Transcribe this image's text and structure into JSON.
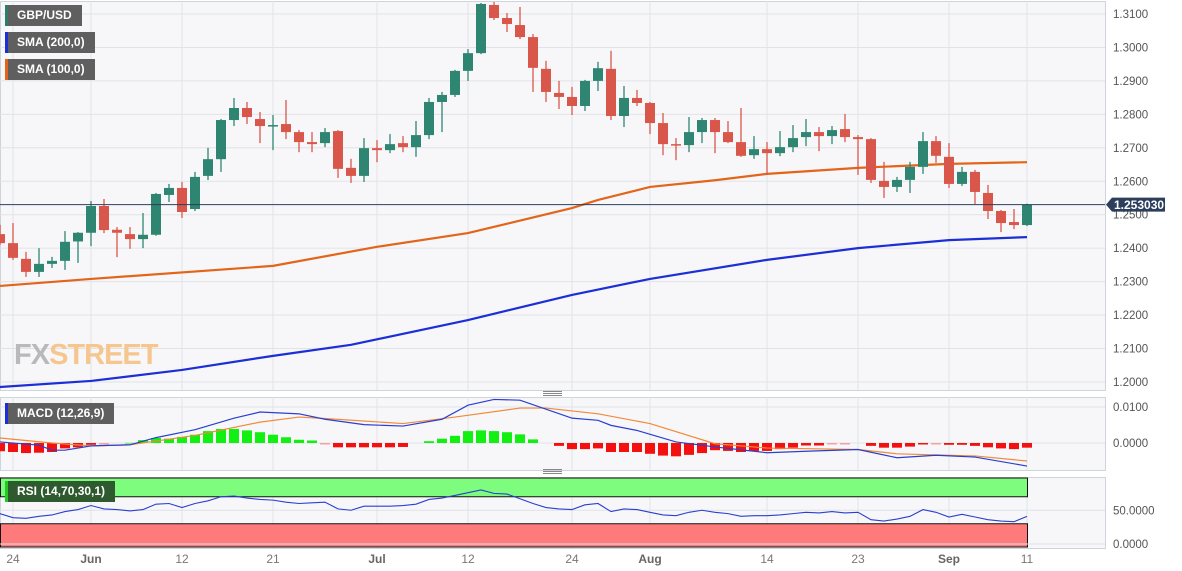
{
  "legends": {
    "pair": {
      "label": "GBP/USD",
      "color": "#2e7d6b"
    },
    "sma200": {
      "label": "SMA (200,0)",
      "color": "#1c2fd6"
    },
    "sma100": {
      "label": "SMA (100,0)",
      "color": "#e2651a"
    },
    "macd": {
      "label": "MACD (12,26,9)",
      "color": "#1c2fd6"
    },
    "rsi": {
      "label": "RSI (14,70,30,1)",
      "color": "#22cc22"
    }
  },
  "logo": {
    "fx": "FX",
    "street": "STREET"
  },
  "colors": {
    "up": "#2e8672",
    "down": "#d9574a",
    "sma200": "#1c2fd6",
    "sma100": "#e2651a",
    "hist_up": "#12f012",
    "hist_down": "#f51010",
    "macd_line": "#2a3fd0",
    "signal_line": "#f08a3c",
    "rsi_line": "#2a3fd0",
    "rsi_overbought": "#7dfc7d",
    "rsi_oversold": "#ff7b7b",
    "price_tag": "#2b3f5c"
  },
  "chart_data": [
    {
      "type": "candlestick",
      "series_name": "GBP/USD",
      "ylim": [
        1.195,
        1.314
      ],
      "y_ticks": [
        "1.3100",
        "1.3000",
        "1.2900",
        "1.2800",
        "1.2700",
        "1.2600",
        "1.2500",
        "1.2400",
        "1.2300",
        "1.2200",
        "1.2100",
        "1.2000"
      ],
      "last_price": "1.253030",
      "grid": true,
      "dates": [
        "May 23",
        "May 24",
        "May 25",
        "May 26",
        "May 29",
        "May 30",
        "May 31",
        "Jun 1",
        "Jun 2",
        "Jun 5",
        "Jun 6",
        "Jun 7",
        "Jun 8",
        "Jun 9",
        "Jun 12",
        "Jun 13",
        "Jun 14",
        "Jun 15",
        "Jun 16",
        "Jun 19",
        "Jun 20",
        "Jun 21",
        "Jun 22",
        "Jun 23",
        "Jun 26",
        "Jun 27",
        "Jun 28",
        "Jun 29",
        "Jun 30",
        "Jul 3",
        "Jul 4",
        "Jul 5",
        "Jul 6",
        "Jul 7",
        "Jul 10",
        "Jul 11",
        "Jul 12",
        "Jul 13",
        "Jul 14",
        "Jul 17",
        "Jul 18",
        "Jul 19",
        "Jul 20",
        "Jul 21",
        "Jul 24",
        "Jul 25",
        "Jul 26",
        "Jul 27",
        "Jul 28",
        "Jul 31",
        "Aug 1",
        "Aug 2",
        "Aug 3",
        "Aug 4",
        "Aug 7",
        "Aug 8",
        "Aug 9",
        "Aug 10",
        "Aug 11",
        "Aug 14",
        "Aug 15",
        "Aug 16",
        "Aug 17",
        "Aug 18",
        "Aug 21",
        "Aug 22",
        "Aug 23",
        "Aug 24",
        "Aug 25",
        "Aug 28",
        "Aug 29",
        "Aug 30",
        "Aug 31",
        "Sep 1",
        "Sep 4",
        "Sep 5",
        "Sep 6",
        "Sep 7",
        "Sep 8",
        "Sep 11"
      ],
      "open": [
        1.2442,
        1.2415,
        1.2368,
        1.2329,
        1.2353,
        1.2362,
        1.242,
        1.2446,
        1.2526,
        1.2455,
        1.2442,
        1.2427,
        1.244,
        1.2559,
        1.258,
        1.2517,
        1.2616,
        1.2666,
        1.2783,
        1.2819,
        1.2786,
        1.2765,
        1.2771,
        1.2747,
        1.2717,
        1.2714,
        1.275,
        1.264,
        1.2616,
        1.2699,
        1.2693,
        1.2714,
        1.2702,
        1.2738,
        1.2837,
        1.2858,
        1.293,
        1.2983,
        1.3127,
        1.3088,
        1.3067,
        1.3031,
        1.2936,
        1.2864,
        1.2852,
        1.2825,
        1.29,
        1.2936,
        1.2795,
        1.2849,
        1.2834,
        1.2774,
        1.2711,
        1.2708,
        1.2747,
        1.2783,
        1.2747,
        1.2717,
        1.2678,
        1.2696,
        1.2684,
        1.2702,
        1.2732,
        1.2747,
        1.2735,
        1.2756,
        1.2732,
        1.2726,
        1.2601,
        1.2583,
        1.2604,
        1.2643,
        1.272,
        1.2673,
        1.2592,
        1.2628,
        1.2565,
        1.2511,
        1.2478,
        1.2469
      ],
      "high": [
        1.247,
        1.2475,
        1.2389,
        1.24,
        1.2374,
        1.2451,
        1.2448,
        1.2541,
        1.2547,
        1.2463,
        1.2463,
        1.2505,
        1.2565,
        1.2592,
        1.2598,
        1.2628,
        1.27,
        1.2786,
        1.2849,
        1.2837,
        1.2807,
        1.2798,
        1.2843,
        1.2753,
        1.2747,
        1.2759,
        1.2753,
        1.2667,
        1.2729,
        1.2723,
        1.2741,
        1.2735,
        1.278,
        1.2849,
        1.2867,
        1.2933,
        1.2995,
        1.3133,
        1.3136,
        1.3103,
        1.3121,
        1.304,
        1.296,
        1.29,
        1.2882,
        1.2903,
        1.2957,
        1.299,
        1.2885,
        1.2873,
        1.2837,
        1.2804,
        1.2729,
        1.2792,
        1.2789,
        1.2789,
        1.278,
        1.2819,
        1.2735,
        1.2717,
        1.275,
        1.2768,
        1.2786,
        1.2762,
        1.2765,
        1.2801,
        1.2738,
        1.2729,
        1.2658,
        1.2613,
        1.2658,
        1.2747,
        1.2735,
        1.2714,
        1.2643,
        1.2634,
        1.2589,
        1.2514,
        1.2517,
        1.2533
      ],
      "low": [
        1.241,
        1.2365,
        1.2314,
        1.2314,
        1.2341,
        1.2335,
        1.2356,
        1.2406,
        1.2445,
        1.2373,
        1.2398,
        1.24,
        1.2437,
        1.2538,
        1.249,
        1.2511,
        1.2604,
        1.2628,
        1.2765,
        1.2771,
        1.2714,
        1.2693,
        1.2726,
        1.2687,
        1.2687,
        1.2702,
        1.261,
        1.2595,
        1.2598,
        1.2657,
        1.2684,
        1.2687,
        1.2673,
        1.2726,
        1.2747,
        1.2852,
        1.29,
        1.298,
        1.3082,
        1.3046,
        1.3025,
        1.2867,
        1.2837,
        1.2816,
        1.2798,
        1.281,
        1.287,
        1.2783,
        1.2762,
        1.2825,
        1.2741,
        1.2678,
        1.2663,
        1.2687,
        1.2714,
        1.2684,
        1.2714,
        1.2673,
        1.2667,
        1.2619,
        1.2675,
        1.2687,
        1.2705,
        1.269,
        1.2711,
        1.2717,
        1.2619,
        1.2595,
        1.255,
        1.2568,
        1.2565,
        1.2622,
        1.2655,
        1.258,
        1.2586,
        1.2532,
        1.2487,
        1.2448,
        1.2457,
        1.2466
      ],
      "close": [
        1.2415,
        1.2371,
        1.2329,
        1.2353,
        1.2362,
        1.2419,
        1.2446,
        1.2526,
        1.2454,
        1.2446,
        1.2427,
        1.244,
        1.2562,
        1.258,
        1.2508,
        1.2613,
        1.2666,
        1.2783,
        1.2819,
        1.2792,
        1.2765,
        1.2768,
        1.2747,
        1.2717,
        1.2711,
        1.2747,
        1.2637,
        1.2616,
        1.2699,
        1.2693,
        1.2711,
        1.2702,
        1.2738,
        1.2837,
        1.2858,
        1.293,
        1.2983,
        1.313,
        1.3088,
        1.307,
        1.3031,
        1.2939,
        1.2867,
        1.2852,
        1.2825,
        1.29,
        1.2938,
        1.2795,
        1.2849,
        1.2834,
        1.2774,
        1.2711,
        1.2708,
        1.2747,
        1.2783,
        1.2747,
        1.2717,
        1.2676,
        1.2696,
        1.2684,
        1.2702,
        1.2729,
        1.2747,
        1.2735,
        1.2753,
        1.2732,
        1.2726,
        1.2604,
        1.2583,
        1.2604,
        1.2643,
        1.272,
        1.2676,
        1.2592,
        1.2628,
        1.2568,
        1.2511,
        1.2475,
        1.2469,
        1.253
      ],
      "sma200": [
        [
          "May 23",
          1.1985
        ],
        [
          "Jun 1",
          1.2003
        ],
        [
          "Jun 12",
          1.2036
        ],
        [
          "Jun 21",
          1.2078
        ],
        [
          "Jun 29",
          1.2111
        ],
        [
          "Jul 12",
          1.2185
        ],
        [
          "Jul 24",
          1.226
        ],
        [
          "Aug 1",
          1.2308
        ],
        [
          "Aug 14",
          1.2365
        ],
        [
          "Aug 23",
          1.24
        ],
        [
          "Sep 1",
          1.2424
        ],
        [
          "Sep 11",
          1.2433
        ]
      ],
      "sma100": [
        [
          "May 23",
          1.2287
        ],
        [
          "Jun 1",
          1.2308
        ],
        [
          "Jun 21",
          1.2347
        ],
        [
          "Jul 3",
          1.2404
        ],
        [
          "Jul 12",
          1.2445
        ],
        [
          "Jul 24",
          1.252
        ],
        [
          "Jul 26",
          1.2544
        ],
        [
          "Aug 1",
          1.2583
        ],
        [
          "Aug 8",
          1.2603
        ],
        [
          "Aug 14",
          1.2622
        ],
        [
          "Aug 23",
          1.264
        ],
        [
          "Sep 1",
          1.2652
        ],
        [
          "Sep 11",
          1.2657
        ]
      ],
      "x_labels": [
        [
          "24",
          "May 24",
          false
        ],
        [
          "Jun",
          "Jun 1",
          true
        ],
        [
          "12",
          "Jun 12",
          false
        ],
        [
          "21",
          "Jun 21",
          false
        ],
        [
          "Jul",
          "Jul 3",
          true
        ],
        [
          "12",
          "Jul 12",
          false
        ],
        [
          "24",
          "Jul 24",
          false
        ],
        [
          "Aug",
          "Aug 1",
          true
        ],
        [
          "14",
          "Aug 14",
          false
        ],
        [
          "23",
          "Aug 23",
          false
        ],
        [
          "Sep",
          "Sep 1",
          true
        ],
        [
          "11",
          "Sep 11",
          false
        ]
      ]
    },
    {
      "type": "bar+line",
      "name": "MACD (12,26,9)",
      "ylim": [
        -0.0075,
        0.013
      ],
      "y_ticks": [
        "0.0100",
        "0.0000"
      ],
      "histogram": [
        -0.0023,
        -0.0025,
        -0.0028,
        -0.0027,
        -0.0025,
        -0.0015,
        -0.0012,
        -0.0005,
        -0.0002,
        0,
        0.0001,
        0.0008,
        0.0014,
        0.0012,
        0.0017,
        0.0023,
        0.0033,
        0.0039,
        0.0039,
        0.0035,
        0.003,
        0.0023,
        0.0016,
        0.0009,
        0.0007,
        -0.0003,
        -0.0012,
        -0.0012,
        -0.0012,
        -0.0012,
        -0.0012,
        -0.0011,
        0,
        0.0005,
        0.0012,
        0.002,
        0.0033,
        0.0035,
        0.0033,
        0.003,
        0.0024,
        0.001,
        0,
        -0.0008,
        -0.0017,
        -0.0017,
        -0.0015,
        -0.0025,
        -0.0025,
        -0.0025,
        -0.003,
        -0.0035,
        -0.0037,
        -0.0033,
        -0.0028,
        -0.002,
        -0.0022,
        -0.0025,
        -0.0023,
        -0.0022,
        -0.0017,
        -0.0013,
        -0.0007,
        -0.0007,
        -0.0003,
        -0.0001,
        0,
        -0.0008,
        -0.0013,
        -0.0013,
        -0.001,
        -0.0004,
        -0.0002,
        -0.0005,
        -0.0005,
        -0.0008,
        -0.0012,
        -0.0015,
        -0.0017,
        -0.0013
      ],
      "macd": [
        [
          "May 23",
          0.0003
        ],
        [
          "May 26",
          -0.0006
        ],
        [
          "May 29",
          -0.002
        ],
        [
          "May 30",
          -0.002
        ],
        [
          "Jun 1",
          -0.0008
        ],
        [
          "Jun 6",
          -0.0005
        ],
        [
          "Jun 8",
          0.0015
        ],
        [
          "Jun 13",
          0.0037
        ],
        [
          "Jun 16",
          0.0069
        ],
        [
          "Jun 20",
          0.0086
        ],
        [
          "Jun 23",
          0.0081
        ],
        [
          "Jun 27",
          0.0066
        ],
        [
          "Jun 30",
          0.0051
        ],
        [
          "Jul 5",
          0.0047
        ],
        [
          "Jul 10",
          0.0066
        ],
        [
          "Jul 12",
          0.0105
        ],
        [
          "Jul 14",
          0.0121
        ],
        [
          "Jul 18",
          0.0119
        ],
        [
          "Jul 24",
          0.0069
        ],
        [
          "Jul 26",
          0.0063
        ],
        [
          "Jul 27",
          0.0049
        ],
        [
          "Jul 31",
          0.0035
        ],
        [
          "Aug 3",
          0.0003
        ],
        [
          "Aug 8",
          -0.0011
        ],
        [
          "Aug 14",
          -0.0027
        ],
        [
          "Aug 17",
          -0.0023
        ],
        [
          "Aug 23",
          -0.0018
        ],
        [
          "Aug 28",
          -0.0041
        ],
        [
          "Aug 31",
          -0.0034
        ],
        [
          "Sep 5",
          -0.0039
        ],
        [
          "Sep 11",
          -0.0064
        ]
      ],
      "signal": [
        [
          "May 23",
          0.0014
        ],
        [
          "May 29",
          0
        ],
        [
          "Jun 1",
          -0.0008
        ],
        [
          "Jun 6",
          -0.0005
        ],
        [
          "Jun 13",
          0.0021
        ],
        [
          "Jun 20",
          0.0058
        ],
        [
          "Jun 23",
          0.0072
        ],
        [
          "Jun 27",
          0.0068
        ],
        [
          "Jul 5",
          0.0054
        ],
        [
          "Jul 11",
          0.0072
        ],
        [
          "Jul 18",
          0.0097
        ],
        [
          "Jul 20",
          0.0097
        ],
        [
          "Jul 26",
          0.0081
        ],
        [
          "Aug 1",
          0.0054
        ],
        [
          "Aug 8",
          -0.0002
        ],
        [
          "Aug 14",
          -0.0014
        ],
        [
          "Aug 23",
          -0.0018
        ],
        [
          "Aug 28",
          -0.003
        ],
        [
          "Sep 5",
          -0.0036
        ],
        [
          "Sep 11",
          -0.005
        ]
      ]
    },
    {
      "type": "line",
      "name": "RSI (14,70,30,1)",
      "ylim": [
        0,
        100
      ],
      "y_ticks": [
        "50.0000",
        "0.0000"
      ],
      "overbought": 70,
      "oversold": 30,
      "values": [
        45,
        39,
        38,
        41,
        43,
        48,
        51,
        57,
        52,
        51,
        49,
        51,
        59,
        60,
        54,
        60,
        64,
        70,
        71,
        68,
        66,
        65,
        62,
        60,
        61,
        62,
        52,
        50,
        56,
        56,
        56,
        57,
        59,
        66,
        68,
        72,
        76,
        80,
        75,
        74,
        67,
        60,
        54,
        52,
        51,
        58,
        60,
        48,
        52,
        51,
        47,
        43,
        42,
        47,
        50,
        47,
        45,
        41,
        42,
        42,
        43,
        45,
        47,
        46,
        48,
        46,
        47,
        36,
        34,
        37,
        41,
        51,
        47,
        40,
        44,
        40,
        36,
        34,
        33,
        41
      ]
    }
  ]
}
